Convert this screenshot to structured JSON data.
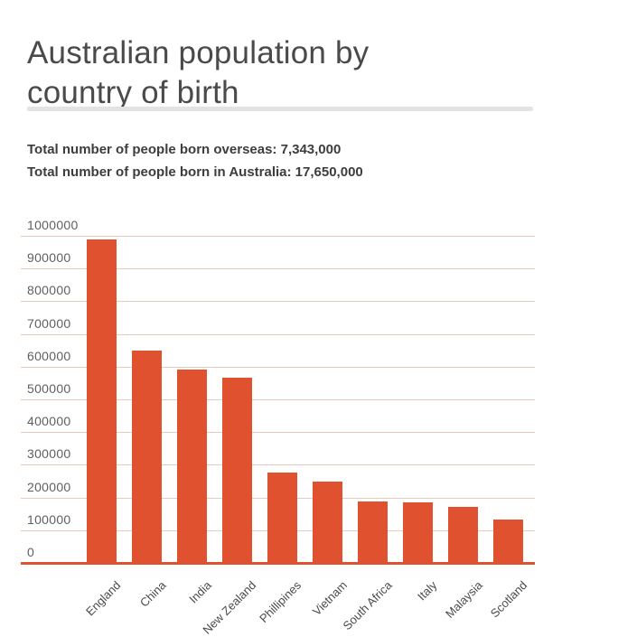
{
  "header": {
    "title_line1": "Australian population by",
    "title_line2": "country of birth"
  },
  "summary": {
    "line1": "Total number of people born overseas: 7,343,000",
    "line2": "Total number of people born in Australia: 17,650,000"
  },
  "chart_data": {
    "type": "bar",
    "title": "Australian population by country of birth",
    "categories": [
      "England",
      "China",
      "India",
      "New Zealand",
      "Phillipines",
      "Vietnam",
      "South Africa",
      "Italy",
      "Malaysia",
      "Scotland"
    ],
    "values": [
      990000,
      650000,
      590000,
      565000,
      275000,
      250000,
      188000,
      185000,
      172000,
      132000
    ],
    "xlabel": "",
    "ylabel": "",
    "ylim": [
      0,
      1000000
    ],
    "ytick_interval": 100000,
    "ytick_labels": [
      "0",
      "100000",
      "200000",
      "300000",
      "400000",
      "500000",
      "600000",
      "700000",
      "800000",
      "900000",
      "1000000"
    ],
    "grid": true,
    "legend": "none",
    "colors": {
      "bar": "#e0512f",
      "gridline": "#eccabb",
      "axis_line": "#e0512f",
      "y_label": "#5f5f5f",
      "x_label": "#4a4a4a",
      "title": "#4a4a4a",
      "summary_text": "#3d3d3d",
      "divider": "#e3e3e3"
    }
  }
}
